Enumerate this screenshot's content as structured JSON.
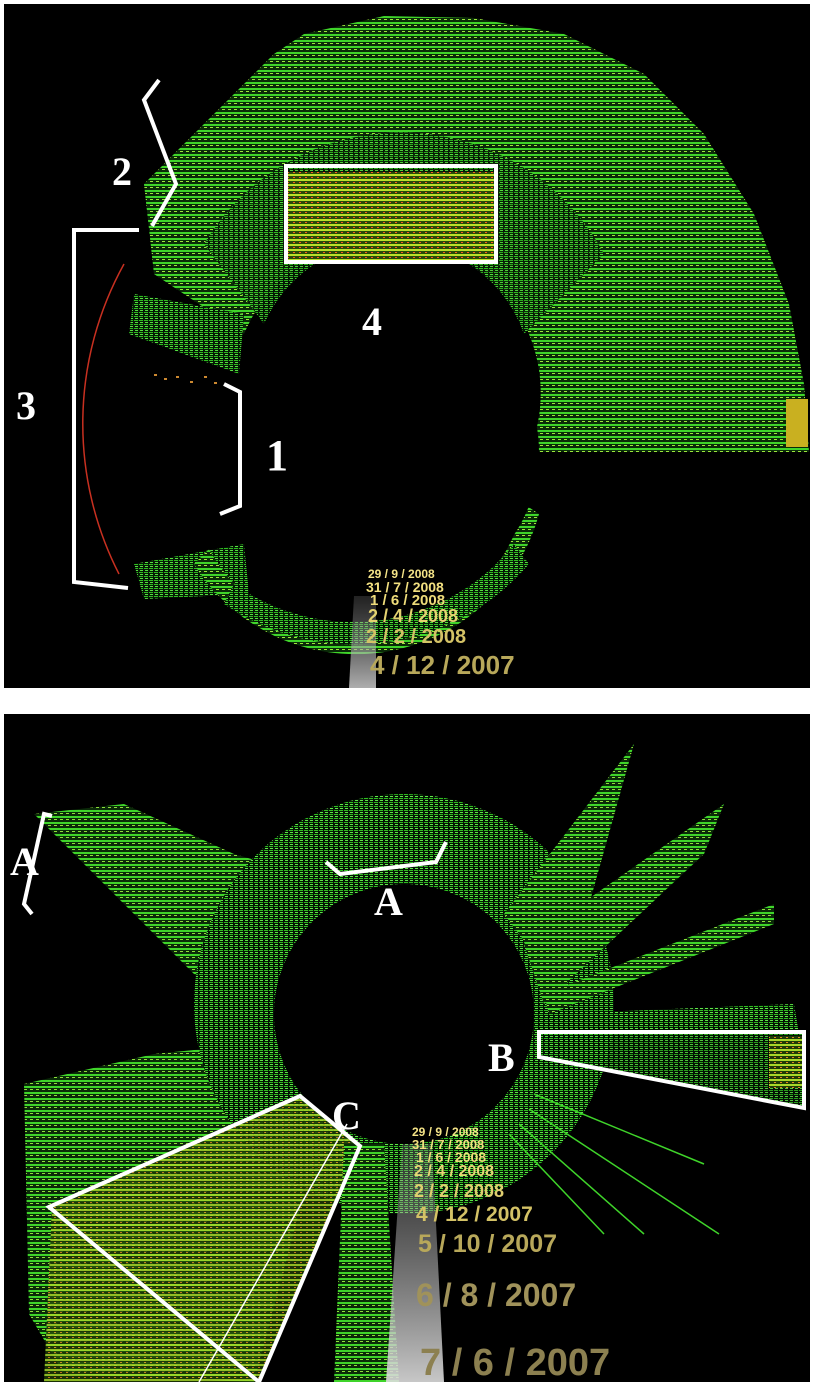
{
  "top_panel": {
    "labels": {
      "l1": "1",
      "l2": "2",
      "l3": "3",
      "l4": "4"
    },
    "dates": [
      "29 / 9 / 2008",
      "31 / 7 / 2008",
      "1 / 6 / 2008",
      "2 / 4 / 2008",
      "2 / 2 / 2008",
      "4 / 12 / 2007"
    ]
  },
  "bottom_panel": {
    "labels": {
      "a_outer": "A",
      "a_inner": "A",
      "b": "B",
      "c": "C"
    },
    "dates": [
      "29 / 9 / 2008",
      "31 / 7 / 2008",
      "1 / 6 / 2008",
      "2 / 4 / 2008",
      "2 / 2 / 2008",
      "4 / 12 / 2007",
      "5 / 10 / 2007",
      "6 / 8 / 2007",
      "7 / 6 / 2007"
    ]
  },
  "colors": {
    "background": "#000000",
    "activity_low": "#33cc22",
    "activity_mid": "#aadd22",
    "activity_high": "#ee4422",
    "date_text": "#e8d77a",
    "annotation": "#ffffff"
  }
}
